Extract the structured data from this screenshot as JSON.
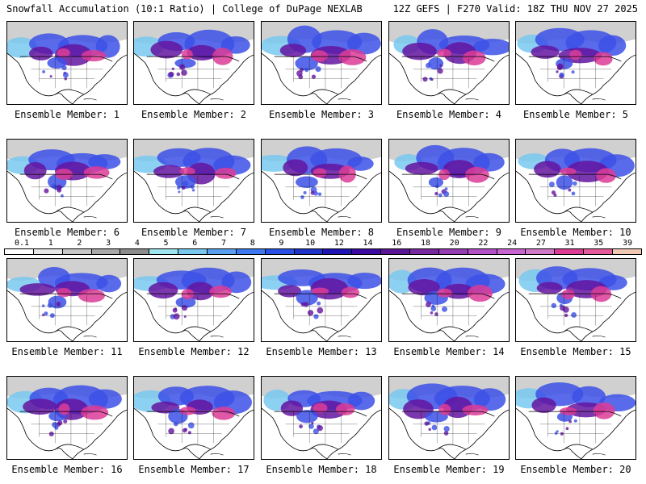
{
  "header": {
    "title_left": "Snowfall Accumulation (10:1 Ratio) | College of DuPage NEXLAB",
    "title_right": "12Z GEFS | F270 Valid: 18Z THU NOV 27 2025"
  },
  "panels": [
    {
      "label": "Ensemble Member: 1"
    },
    {
      "label": "Ensemble Member: 2"
    },
    {
      "label": "Ensemble Member: 3"
    },
    {
      "label": "Ensemble Member: 4"
    },
    {
      "label": "Ensemble Member: 5"
    },
    {
      "label": "Ensemble Member: 6"
    },
    {
      "label": "Ensemble Member: 7"
    },
    {
      "label": "Ensemble Member: 8"
    },
    {
      "label": "Ensemble Member: 9"
    },
    {
      "label": "Ensemble Member: 10"
    },
    {
      "label": "Ensemble Member: 11"
    },
    {
      "label": "Ensemble Member: 12"
    },
    {
      "label": "Ensemble Member: 13"
    },
    {
      "label": "Ensemble Member: 14"
    },
    {
      "label": "Ensemble Member: 15"
    },
    {
      "label": "Ensemble Member: 16"
    },
    {
      "label": "Ensemble Member: 17"
    },
    {
      "label": "Ensemble Member: 18"
    },
    {
      "label": "Ensemble Member: 19"
    },
    {
      "label": "Ensemble Member: 20"
    }
  ],
  "colorbar": {
    "labels": [
      "0.1",
      "1",
      "2",
      "3",
      "4",
      "5",
      "6",
      "7",
      "8",
      "9",
      "10",
      "12",
      "14",
      "16",
      "18",
      "20",
      "22",
      "24",
      "27",
      "31",
      "35",
      "39"
    ],
    "colors": [
      "#ffffff",
      "#e6e6e6",
      "#c8c8c8",
      "#a8a8a8",
      "#8c8c8c",
      "#9ee6f0",
      "#78c8f0",
      "#5aa0f0",
      "#3c78f0",
      "#2850e6",
      "#1e32c8",
      "#1e14b4",
      "#3c0aa0",
      "#5a1496",
      "#7828a0",
      "#963cb4",
      "#b450c8",
      "#c864d2",
      "#d278c8",
      "#dc3c96",
      "#e65a9c",
      "#f0c8b4"
    ]
  },
  "colors": {
    "snow_light_gray": "#c8c8c8",
    "snow_cyan": "#78c8f0",
    "snow_blue": "#3c50e6",
    "snow_purple": "#6414a0",
    "snow_magenta": "#dc3c96",
    "coastline": "#000000"
  }
}
